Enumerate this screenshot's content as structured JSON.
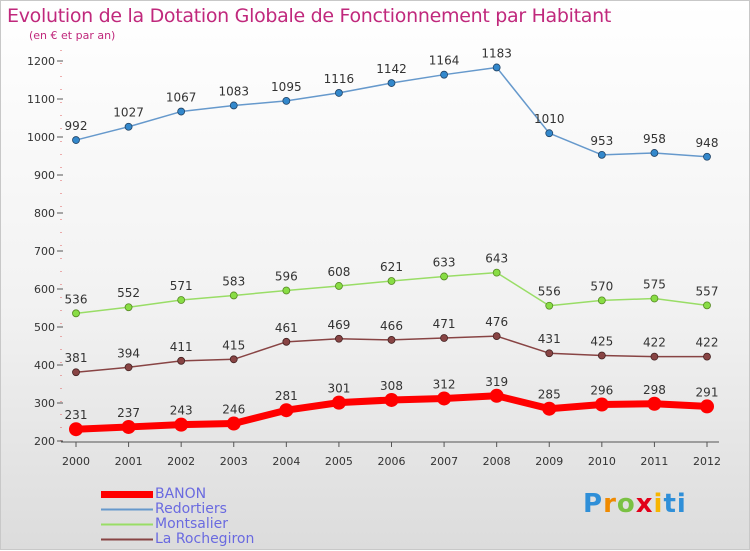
{
  "chart_data": {
    "type": "line",
    "title": "Evolution de la Dotation Globale de Fonctionnement par Habitant",
    "subtitle": "(en € et par an)",
    "x": [
      "2000",
      "2001",
      "2002",
      "2003",
      "2004",
      "2005",
      "2006",
      "2007",
      "2008",
      "2009",
      "2010",
      "2011",
      "2012"
    ],
    "ylim": [
      200,
      1200
    ],
    "yticks": [
      200,
      300,
      400,
      500,
      600,
      700,
      800,
      900,
      1000,
      1100,
      1200
    ],
    "grid": false,
    "legend_position": "bottom-left",
    "series": [
      {
        "name": "BANON",
        "color": "#ff0000",
        "values": [
          231,
          237,
          243,
          246,
          281,
          301,
          308,
          312,
          319,
          285,
          296,
          298,
          291
        ]
      },
      {
        "name": "Redortiers",
        "color": "#6699cc",
        "values": [
          992,
          1027,
          1067,
          1083,
          1095,
          1116,
          1142,
          1164,
          1183,
          1010,
          953,
          958,
          948
        ]
      },
      {
        "name": "Montsalier",
        "color": "#99dd66",
        "values": [
          536,
          552,
          571,
          583,
          596,
          608,
          621,
          633,
          643,
          556,
          570,
          575,
          557
        ]
      },
      {
        "name": "La Rochegiron",
        "color": "#884444",
        "values": [
          381,
          394,
          411,
          415,
          461,
          469,
          466,
          471,
          476,
          431,
          425,
          422,
          422
        ]
      }
    ]
  },
  "logo": {
    "text": "Proxiti",
    "letters": [
      "P",
      "r",
      "o",
      "x",
      "i",
      "ti"
    ]
  }
}
